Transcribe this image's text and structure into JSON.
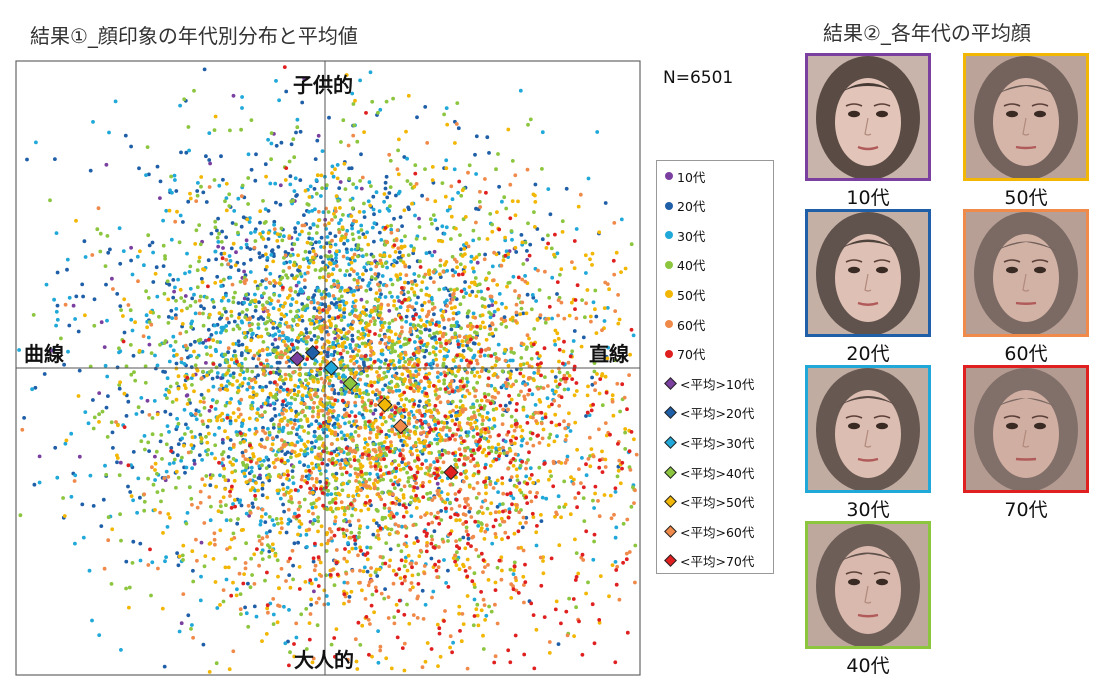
{
  "titles": {
    "left": "結果①_顔印象の年代別分布と平均値",
    "right": "結果②_各年代の平均顔"
  },
  "chart_data": {
    "type": "scatter",
    "title": "結果①_顔印象の年代別分布と平均値",
    "n_label": "N=6501",
    "axis_labels": {
      "top": "子供的",
      "bottom": "大人的",
      "left": "曲線",
      "right": "直線"
    },
    "xlim": [
      -1,
      1
    ],
    "ylim": [
      -1,
      1
    ],
    "grid": false,
    "legend_position": "right",
    "series": [
      {
        "name": "10代",
        "color": "#7b3fa0",
        "kind": "points"
      },
      {
        "name": "20代",
        "color": "#1f5fa8",
        "kind": "points"
      },
      {
        "name": "30代",
        "color": "#1fa8d8",
        "kind": "points"
      },
      {
        "name": "40代",
        "color": "#8cc63f",
        "kind": "points"
      },
      {
        "name": "50代",
        "color": "#f2b705",
        "kind": "points"
      },
      {
        "name": "60代",
        "color": "#f08a4b",
        "kind": "points"
      },
      {
        "name": "70代",
        "color": "#e02020",
        "kind": "points"
      }
    ],
    "means": [
      {
        "name": "<平均>10代",
        "color": "#7b3fa0",
        "x": -0.09,
        "y": 0.03
      },
      {
        "name": "<平均>20代",
        "color": "#1f5fa8",
        "x": -0.04,
        "y": 0.05
      },
      {
        "name": "<平均>30代",
        "color": "#1fa8d8",
        "x": 0.02,
        "y": 0.0
      },
      {
        "name": "<平均>40代",
        "color": "#8cc63f",
        "x": 0.08,
        "y": -0.05
      },
      {
        "name": "<平均>50代",
        "color": "#f2b705",
        "x": 0.19,
        "y": -0.12
      },
      {
        "name": "<平均>60代",
        "color": "#f08a4b",
        "x": 0.24,
        "y": -0.19
      },
      {
        "name": "<平均>70代",
        "color": "#e02020",
        "x": 0.4,
        "y": -0.34
      }
    ]
  },
  "faces": [
    {
      "label": "10代",
      "color": "#7b3fa0"
    },
    {
      "label": "20代",
      "color": "#1f5fa8"
    },
    {
      "label": "30代",
      "color": "#1fa8d8"
    },
    {
      "label": "40代",
      "color": "#8cc63f"
    },
    {
      "label": "50代",
      "color": "#f2b705"
    },
    {
      "label": "60代",
      "color": "#f08a4b"
    },
    {
      "label": "70代",
      "color": "#e02020"
    }
  ]
}
